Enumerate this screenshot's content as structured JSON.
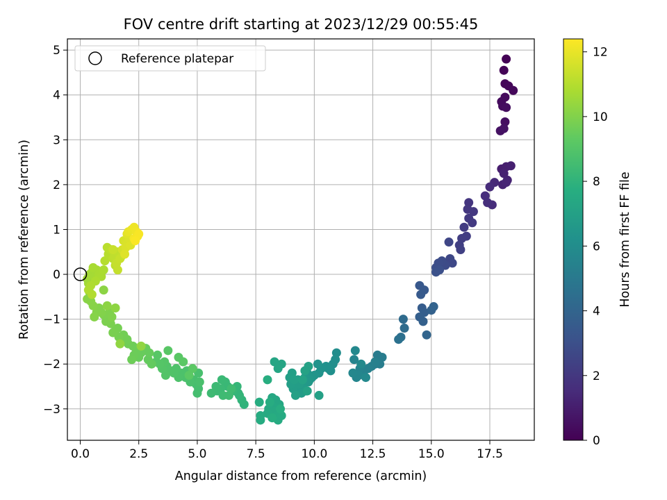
{
  "chart_data": {
    "type": "scatter",
    "title": "FOV centre drift starting at 2023/12/29 00:55:45",
    "xlabel": "Angular distance from reference (arcmin)",
    "ylabel": "Rotation from reference (arcmin)",
    "xlim": [
      -0.55,
      19.4
    ],
    "ylim": [
      -3.7,
      5.25
    ],
    "xticks": [
      "0.0",
      "2.5",
      "5.0",
      "7.5",
      "10.0",
      "12.5",
      "15.0",
      "17.5"
    ],
    "yticks": [
      "−3",
      "−2",
      "−1",
      "0",
      "1",
      "2",
      "3",
      "4",
      "5"
    ],
    "grid": true,
    "legend": {
      "label": "Reference platepar",
      "position": "top-left"
    },
    "reference_point": {
      "x": 0.0,
      "y": 0.0
    },
    "colorbar": {
      "label": "Hours from first FF file",
      "colormap": "viridis",
      "range": [
        0,
        12.4
      ],
      "ticks": [
        "0",
        "2",
        "4",
        "6",
        "8",
        "10",
        "12"
      ]
    },
    "points": [
      [
        18.2,
        4.8,
        0.05
      ],
      [
        18.1,
        4.55,
        0.1
      ],
      [
        18.15,
        4.25,
        0.15
      ],
      [
        18.3,
        4.2,
        0.2
      ],
      [
        18.5,
        4.1,
        0.25
      ],
      [
        18.15,
        3.95,
        0.3
      ],
      [
        18.0,
        3.85,
        0.35
      ],
      [
        18.05,
        3.75,
        0.4
      ],
      [
        18.2,
        3.72,
        0.45
      ],
      [
        18.15,
        3.4,
        0.5
      ],
      [
        17.95,
        3.2,
        0.6
      ],
      [
        18.1,
        3.25,
        0.65
      ],
      [
        18.0,
        2.35,
        1.0
      ],
      [
        18.2,
        2.4,
        1.05
      ],
      [
        18.4,
        2.42,
        1.1
      ],
      [
        18.1,
        2.25,
        1.15
      ],
      [
        18.25,
        2.1,
        1.2
      ],
      [
        18.05,
        2.0,
        1.25
      ],
      [
        18.2,
        2.05,
        1.3
      ],
      [
        17.7,
        2.05,
        1.4
      ],
      [
        17.5,
        1.95,
        1.5
      ],
      [
        17.6,
        1.55,
        1.55
      ],
      [
        17.3,
        1.75,
        1.6
      ],
      [
        17.4,
        1.6,
        1.65
      ],
      [
        16.6,
        1.6,
        1.9
      ],
      [
        16.55,
        1.45,
        1.95
      ],
      [
        16.8,
        1.4,
        2.0
      ],
      [
        16.6,
        1.25,
        2.05
      ],
      [
        16.75,
        1.15,
        2.1
      ],
      [
        16.4,
        1.05,
        2.15
      ],
      [
        16.5,
        0.85,
        2.2
      ],
      [
        16.3,
        0.8,
        2.25
      ],
      [
        16.2,
        0.65,
        2.3
      ],
      [
        16.25,
        0.55,
        2.35
      ],
      [
        15.75,
        0.72,
        2.6
      ],
      [
        15.8,
        0.35,
        2.65
      ],
      [
        15.9,
        0.25,
        2.7
      ],
      [
        15.6,
        0.2,
        2.8
      ],
      [
        15.45,
        0.3,
        2.85
      ],
      [
        15.3,
        0.25,
        2.9
      ],
      [
        15.2,
        0.15,
        2.95
      ],
      [
        15.35,
        0.1,
        3.0
      ],
      [
        15.2,
        0.05,
        3.05
      ],
      [
        14.5,
        -0.25,
        3.4
      ],
      [
        14.7,
        -0.35,
        3.45
      ],
      [
        14.55,
        -0.45,
        3.5
      ],
      [
        14.6,
        -0.75,
        3.6
      ],
      [
        14.7,
        -0.85,
        3.7
      ],
      [
        14.5,
        -0.95,
        3.75
      ],
      [
        14.65,
        -1.05,
        3.8
      ],
      [
        15.0,
        -0.8,
        3.85
      ],
      [
        15.1,
        -0.72,
        3.9
      ],
      [
        14.8,
        -1.35,
        4.0
      ],
      [
        13.8,
        -1.0,
        4.3
      ],
      [
        13.85,
        -1.2,
        4.35
      ],
      [
        13.7,
        -1.4,
        4.5
      ],
      [
        13.6,
        -1.45,
        4.6
      ],
      [
        12.7,
        -1.8,
        5.1
      ],
      [
        12.9,
        -1.85,
        5.15
      ],
      [
        12.8,
        -2.0,
        5.2
      ],
      [
        12.6,
        -2.0,
        5.25
      ],
      [
        12.45,
        -2.05,
        5.3
      ],
      [
        12.6,
        -1.95,
        5.35
      ],
      [
        12.3,
        -2.1,
        5.4
      ],
      [
        12.1,
        -2.2,
        5.45
      ],
      [
        11.95,
        -2.1,
        5.5
      ],
      [
        11.7,
        -1.9,
        5.55
      ],
      [
        11.8,
        -2.3,
        5.6
      ],
      [
        11.9,
        -2.25,
        5.65
      ],
      [
        11.65,
        -2.2,
        5.7
      ],
      [
        11.75,
        -1.7,
        5.75
      ],
      [
        12.2,
        -2.3,
        5.8
      ],
      [
        12.0,
        -2.0,
        5.82
      ],
      [
        10.95,
        -1.75,
        6.0
      ],
      [
        10.9,
        -1.9,
        6.05
      ],
      [
        10.8,
        -2.0,
        6.1
      ],
      [
        10.7,
        -2.15,
        6.15
      ],
      [
        10.5,
        -2.05,
        6.2
      ],
      [
        10.6,
        -2.1,
        6.22
      ],
      [
        10.3,
        -2.1,
        6.25
      ],
      [
        10.2,
        -2.2,
        6.3
      ],
      [
        10.15,
        -2.0,
        6.32
      ],
      [
        10.0,
        -2.25,
        6.35
      ],
      [
        9.9,
        -2.3,
        6.4
      ],
      [
        9.7,
        -2.2,
        6.45
      ],
      [
        9.8,
        -2.35,
        6.5
      ],
      [
        9.6,
        -2.3,
        6.55
      ],
      [
        9.75,
        -2.4,
        6.6
      ],
      [
        9.5,
        -2.45,
        6.62
      ],
      [
        9.4,
        -2.5,
        6.65
      ],
      [
        9.3,
        -2.35,
        6.7
      ],
      [
        9.55,
        -2.55,
        6.72
      ],
      [
        9.2,
        -2.6,
        6.75
      ],
      [
        9.45,
        -2.65,
        6.78
      ],
      [
        9.65,
        -2.6,
        6.8
      ],
      [
        9.35,
        -2.45,
        6.83
      ],
      [
        9.1,
        -2.55,
        6.85
      ],
      [
        9.0,
        -2.45,
        6.9
      ],
      [
        8.95,
        -2.3,
        6.92
      ],
      [
        9.05,
        -2.2,
        6.95
      ],
      [
        9.15,
        -2.35,
        6.98
      ],
      [
        9.2,
        -2.7,
        7.0
      ],
      [
        10.2,
        -2.7,
        7.02
      ],
      [
        9.75,
        -2.05,
        7.05
      ],
      [
        9.6,
        -2.15,
        7.07
      ],
      [
        9.7,
        -2.6,
        7.1
      ],
      [
        9.5,
        -2.35,
        7.12
      ],
      [
        8.6,
        -2.0,
        7.2
      ],
      [
        8.3,
        -1.95,
        7.25
      ],
      [
        8.45,
        -2.1,
        7.28
      ],
      [
        8.5,
        -2.9,
        7.3
      ],
      [
        8.35,
        -2.8,
        7.32
      ],
      [
        8.2,
        -2.75,
        7.35
      ],
      [
        8.15,
        -2.9,
        7.38
      ],
      [
        8.25,
        -2.95,
        7.4
      ],
      [
        8.05,
        -3.0,
        7.42
      ],
      [
        8.3,
        -3.05,
        7.45
      ],
      [
        8.0,
        -3.1,
        7.48
      ],
      [
        8.4,
        -3.15,
        7.5
      ],
      [
        8.45,
        -3.25,
        7.52
      ],
      [
        8.6,
        -3.15,
        7.55
      ],
      [
        7.7,
        -3.15,
        7.58
      ],
      [
        7.7,
        -3.25,
        7.6
      ],
      [
        7.65,
        -2.85,
        7.62
      ],
      [
        8.1,
        -2.85,
        7.65
      ],
      [
        8.55,
        -3.0,
        7.68
      ],
      [
        8.0,
        -2.35,
        7.7
      ],
      [
        8.2,
        -3.2,
        7.72
      ],
      [
        7.0,
        -2.9,
        8.0
      ],
      [
        6.9,
        -2.8,
        8.05
      ],
      [
        6.75,
        -2.65,
        8.1
      ],
      [
        6.8,
        -2.7,
        8.12
      ],
      [
        6.7,
        -2.5,
        8.15
      ],
      [
        6.5,
        -2.6,
        8.2
      ],
      [
        6.3,
        -2.5,
        8.25
      ],
      [
        6.2,
        -2.4,
        8.28
      ],
      [
        6.05,
        -2.35,
        8.3
      ],
      [
        6.0,
        -2.55,
        8.32
      ],
      [
        5.85,
        -2.6,
        8.35
      ],
      [
        5.8,
        -2.5,
        8.38
      ],
      [
        5.6,
        -2.65,
        8.4
      ],
      [
        6.1,
        -2.7,
        8.42
      ],
      [
        6.35,
        -2.7,
        8.45
      ],
      [
        6.45,
        -2.55,
        8.48
      ],
      [
        5.05,
        -2.55,
        8.6
      ],
      [
        5.0,
        -2.65,
        8.62
      ],
      [
        4.95,
        -2.45,
        8.65
      ],
      [
        4.85,
        -2.35,
        8.68
      ],
      [
        5.05,
        -2.2,
        8.7
      ],
      [
        5.1,
        -2.4,
        8.72
      ],
      [
        4.7,
        -2.4,
        8.75
      ],
      [
        4.5,
        -2.3,
        8.78
      ],
      [
        4.55,
        -2.15,
        8.8
      ],
      [
        4.3,
        -2.2,
        8.82
      ],
      [
        4.2,
        -2.3,
        8.85
      ],
      [
        4.1,
        -2.1,
        8.88
      ],
      [
        4.0,
        -2.2,
        8.9
      ],
      [
        3.85,
        -2.15,
        8.92
      ],
      [
        3.7,
        -2.05,
        8.95
      ],
      [
        3.65,
        -2.25,
        8.98
      ],
      [
        3.5,
        -2.1,
        9.0
      ],
      [
        3.6,
        -1.95,
        9.02
      ],
      [
        3.4,
        -2.0,
        9.05
      ],
      [
        3.25,
        -1.95,
        9.08
      ],
      [
        3.3,
        -1.8,
        9.1
      ],
      [
        3.75,
        -1.7,
        9.12
      ],
      [
        4.2,
        -1.85,
        9.15
      ],
      [
        4.4,
        -1.95,
        9.18
      ],
      [
        4.8,
        -2.1,
        9.2
      ],
      [
        4.65,
        -2.25,
        9.22
      ],
      [
        3.05,
        -2.0,
        9.4
      ],
      [
        2.9,
        -1.9,
        9.42
      ],
      [
        2.95,
        -1.75,
        9.45
      ],
      [
        2.8,
        -1.65,
        9.48
      ],
      [
        2.6,
        -1.75,
        9.5
      ],
      [
        2.5,
        -1.85,
        9.52
      ],
      [
        2.4,
        -1.7,
        9.55
      ],
      [
        2.3,
        -1.8,
        9.58
      ],
      [
        2.2,
        -1.9,
        9.6
      ],
      [
        2.25,
        -1.6,
        9.62
      ],
      [
        2.05,
        -1.55,
        9.65
      ],
      [
        2.0,
        -1.45,
        9.68
      ],
      [
        1.85,
        -1.35,
        9.7
      ],
      [
        1.75,
        -1.5,
        9.72
      ],
      [
        1.65,
        -1.4,
        9.75
      ],
      [
        1.6,
        -1.2,
        9.78
      ],
      [
        1.5,
        -1.25,
        9.8
      ],
      [
        1.4,
        -1.3,
        9.82
      ],
      [
        1.3,
        -1.1,
        9.85
      ],
      [
        1.2,
        -1.0,
        9.88
      ],
      [
        1.1,
        -1.05,
        9.9
      ],
      [
        1.0,
        -0.9,
        9.92
      ],
      [
        1.25,
        -0.85,
        9.95
      ],
      [
        1.35,
        -0.95,
        9.98
      ],
      [
        0.9,
        -0.85,
        10.0
      ],
      [
        0.8,
        -0.75,
        10.02
      ],
      [
        0.7,
        -0.85,
        10.05
      ],
      [
        0.6,
        -0.95,
        10.08
      ],
      [
        0.55,
        -0.7,
        10.1
      ],
      [
        0.45,
        -0.6,
        10.12
      ],
      [
        0.3,
        -0.55,
        10.15
      ],
      [
        0.4,
        -0.4,
        10.18
      ],
      [
        1.0,
        -0.35,
        10.2
      ],
      [
        1.15,
        -0.7,
        10.22
      ],
      [
        1.5,
        -0.75,
        10.25
      ],
      [
        1.7,
        -1.55,
        10.28
      ],
      [
        2.6,
        -1.6,
        10.3
      ],
      [
        0.35,
        -0.2,
        10.6
      ],
      [
        0.3,
        -0.1,
        10.62
      ],
      [
        0.4,
        0.0,
        10.65
      ],
      [
        0.5,
        0.05,
        10.68
      ],
      [
        0.6,
        -0.05,
        10.7
      ],
      [
        0.7,
        0.1,
        10.72
      ],
      [
        0.55,
        0.15,
        10.75
      ],
      [
        0.8,
        0.0,
        10.78
      ],
      [
        0.9,
        -0.05,
        10.8
      ],
      [
        1.0,
        0.1,
        10.82
      ],
      [
        0.65,
        -0.15,
        10.85
      ],
      [
        0.45,
        -0.25,
        10.88
      ],
      [
        0.35,
        -0.35,
        10.9
      ],
      [
        0.5,
        -0.45,
        10.92
      ],
      [
        1.05,
        0.3,
        11.0
      ],
      [
        1.2,
        0.45,
        11.05
      ],
      [
        1.15,
        0.6,
        11.1
      ],
      [
        1.3,
        0.55,
        11.12
      ],
      [
        1.4,
        0.35,
        11.15
      ],
      [
        1.5,
        0.2,
        11.18
      ],
      [
        1.45,
        0.4,
        11.2
      ],
      [
        1.6,
        0.5,
        11.22
      ],
      [
        1.75,
        0.4,
        11.25
      ],
      [
        1.85,
        0.5,
        11.28
      ],
      [
        1.6,
        0.1,
        11.3
      ],
      [
        1.55,
        0.25,
        11.32
      ],
      [
        1.7,
        0.35,
        11.35
      ],
      [
        1.4,
        0.55,
        11.38
      ],
      [
        1.8,
        0.55,
        11.6
      ],
      [
        1.85,
        0.75,
        11.65
      ],
      [
        2.0,
        0.7,
        11.7
      ],
      [
        1.95,
        0.6,
        11.72
      ],
      [
        2.1,
        0.8,
        11.75
      ],
      [
        2.15,
        0.65,
        11.78
      ],
      [
        1.9,
        0.45,
        11.8
      ],
      [
        2.0,
        0.9,
        11.82
      ],
      [
        2.05,
        0.95,
        12.0
      ],
      [
        2.2,
        1.0,
        12.05
      ],
      [
        2.3,
        1.05,
        12.1
      ],
      [
        2.4,
        0.95,
        12.15
      ],
      [
        2.45,
        0.85,
        12.2
      ],
      [
        2.3,
        0.8,
        12.25
      ],
      [
        2.5,
        0.9,
        12.3
      ],
      [
        2.35,
        0.75,
        12.35
      ]
    ]
  }
}
